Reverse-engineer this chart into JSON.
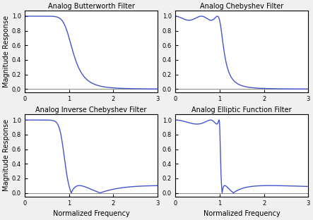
{
  "titles": [
    "Analog Butterworth Filter",
    "Analog Chebyshev Filter",
    "Analog Inverse Chebyshev Filter",
    "Analog Elliptic Function Filter"
  ],
  "xlabel": "Normalized Frequency",
  "ylabel": "Magnitude Response",
  "xlim": [
    0,
    3
  ],
  "ylim": [
    -0.05,
    1.08
  ],
  "yticks": [
    0,
    0.2,
    0.4,
    0.6,
    0.8,
    1.0
  ],
  "xticks": [
    0,
    1,
    2,
    3
  ],
  "line_color": "#4455cc",
  "line_width": 1.0,
  "fig_bg": "#f0f0f0",
  "axes_bg": "#ffffff",
  "butterworth_order": 6,
  "chebyshev_order": 5,
  "chebyshev_rp": 0.5,
  "inv_chebyshev_order": 5,
  "inv_chebyshev_rs": 20,
  "elliptic_order": 5,
  "elliptic_rp": 0.5,
  "elliptic_rs": 20
}
